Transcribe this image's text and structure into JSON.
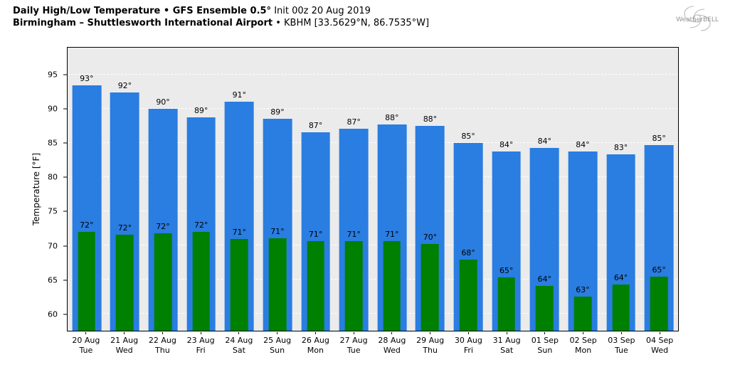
{
  "header": {
    "line1_bold": "Daily High/Low Temperature • GFS Ensemble 0.5°",
    "line1_regular": " Init 00z 20 Aug 2019",
    "line2_bold": "Birmingham – Shuttlesworth International Airport",
    "line2_regular": " • KBHM [33.5629°N, 86.7535°W]",
    "logo_text": "WeatherBELL"
  },
  "chart_data": {
    "type": "bar",
    "title": "Daily High/Low Temperature • GFS Ensemble 0.5° Init 00z 20 Aug 2019 — Birmingham – Shuttlesworth International Airport • KBHM [33.5629°N, 86.7535°W]",
    "xlabel": "",
    "ylabel": "Temperature [°F]",
    "ylim": [
      57.5,
      99.0
    ],
    "yticks": [
      60,
      65,
      70,
      75,
      80,
      85,
      90,
      95
    ],
    "grid": "horizontal-dashed-white",
    "legend_position": "none",
    "plot_background": "#ebebeb",
    "categories": [
      {
        "date": "20 Aug",
        "day": "Tue"
      },
      {
        "date": "21 Aug",
        "day": "Wed"
      },
      {
        "date": "22 Aug",
        "day": "Thu"
      },
      {
        "date": "23 Aug",
        "day": "Fri"
      },
      {
        "date": "24 Aug",
        "day": "Sat"
      },
      {
        "date": "25 Aug",
        "day": "Sun"
      },
      {
        "date": "26 Aug",
        "day": "Mon"
      },
      {
        "date": "27 Aug",
        "day": "Tue"
      },
      {
        "date": "28 Aug",
        "day": "Wed"
      },
      {
        "date": "29 Aug",
        "day": "Thu"
      },
      {
        "date": "30 Aug",
        "day": "Fri"
      },
      {
        "date": "31 Aug",
        "day": "Sat"
      },
      {
        "date": "01 Sep",
        "day": "Sun"
      },
      {
        "date": "02 Sep",
        "day": "Mon"
      },
      {
        "date": "03 Sep",
        "day": "Tue"
      },
      {
        "date": "04 Sep",
        "day": "Wed"
      }
    ],
    "series": [
      {
        "name": "Daily High",
        "color": "#2a7de1",
        "labels": [
          "93°",
          "92°",
          "90°",
          "89°",
          "91°",
          "89°",
          "87°",
          "87°",
          "88°",
          "88°",
          "85°",
          "84°",
          "84°",
          "84°",
          "83°",
          "85°"
        ],
        "values": [
          93.5,
          92.4,
          90.0,
          88.8,
          91.1,
          88.6,
          86.6,
          87.1,
          87.7,
          87.5,
          85.0,
          83.8,
          84.3,
          83.8,
          83.4,
          84.7
        ]
      },
      {
        "name": "Daily Low",
        "color": "#008000",
        "labels": [
          "72°",
          "72°",
          "72°",
          "72°",
          "71°",
          "71°",
          "71°",
          "71°",
          "71°",
          "70°",
          "68°",
          "65°",
          "64°",
          "63°",
          "64°",
          "65°"
        ],
        "values": [
          72.0,
          71.6,
          71.8,
          72.0,
          71.0,
          71.1,
          70.6,
          70.6,
          70.6,
          70.2,
          67.9,
          65.3,
          64.1,
          62.5,
          64.3,
          65.4
        ]
      }
    ]
  }
}
